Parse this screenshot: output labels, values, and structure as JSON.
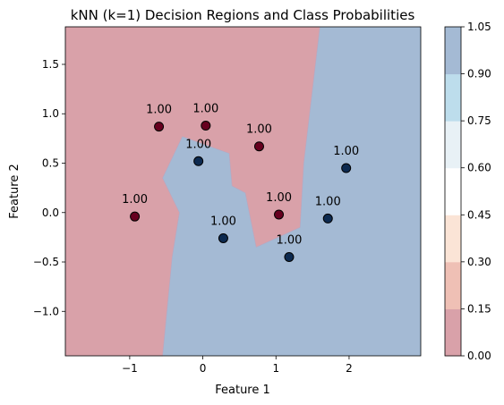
{
  "chart_data": {
    "type": "scatter",
    "title": "kNN (k=1) Decision Regions and Class Probabilities",
    "xlabel": "Feature 1",
    "ylabel": "Feature 2",
    "xlim": [
      -1.88,
      2.98
    ],
    "ylim": [
      -1.45,
      1.88
    ],
    "xticks": [
      -1,
      0,
      1,
      2
    ],
    "yticks": [
      -1.0,
      -0.5,
      0.0,
      0.5,
      1.0,
      1.5
    ],
    "xtick_labels": [
      "−1",
      "0",
      "1",
      "2"
    ],
    "ytick_labels": [
      "−1.0",
      "−0.5",
      "0.0",
      "0.5",
      "1.0",
      "1.5"
    ],
    "grid": false,
    "colors": {
      "class0_region": "#d9a1a9",
      "class1_region": "#a4bad4",
      "class0_point": "#67001f",
      "class1_point": "#0d2a50"
    },
    "regions": [
      {
        "class": 0,
        "boundary": [
          [
            -1.88,
            -1.45
          ],
          [
            -0.55,
            -1.45
          ],
          [
            -0.42,
            -0.45
          ],
          [
            -0.32,
            0.0
          ],
          [
            -0.55,
            0.35
          ],
          [
            -0.28,
            0.77
          ],
          [
            0.36,
            0.6
          ],
          [
            0.4,
            0.27
          ],
          [
            0.58,
            0.2
          ],
          [
            0.73,
            -0.35
          ],
          [
            1.33,
            -0.15
          ],
          [
            1.38,
            0.5
          ],
          [
            1.6,
            1.88
          ],
          [
            -1.88,
            1.88
          ]
        ]
      }
    ],
    "points": [
      {
        "x": -0.6,
        "y": 0.87,
        "class": 0,
        "label": "1.00"
      },
      {
        "x": 0.04,
        "y": 0.88,
        "class": 0,
        "label": "1.00"
      },
      {
        "x": 0.77,
        "y": 0.67,
        "class": 0,
        "label": "1.00"
      },
      {
        "x": -0.93,
        "y": -0.04,
        "class": 0,
        "label": "1.00"
      },
      {
        "x": 1.04,
        "y": -0.02,
        "class": 0,
        "label": "1.00"
      },
      {
        "x": -0.06,
        "y": 0.52,
        "class": 1,
        "label": "1.00"
      },
      {
        "x": 1.96,
        "y": 0.45,
        "class": 1,
        "label": "1.00"
      },
      {
        "x": 1.71,
        "y": -0.06,
        "class": 1,
        "label": "1.00"
      },
      {
        "x": 0.28,
        "y": -0.26,
        "class": 1,
        "label": "1.00"
      },
      {
        "x": 1.18,
        "y": -0.45,
        "class": 1,
        "label": "1.00"
      }
    ],
    "colorbar": {
      "ticks": [
        "0.00",
        "0.15",
        "0.30",
        "0.45",
        "0.60",
        "0.75",
        "0.90",
        "1.05"
      ],
      "bands": [
        "#d9a1a9",
        "#efc0b5",
        "#fbe4d6",
        "#ffffff",
        "#e8f1f6",
        "#bdddec",
        "#a4bad4"
      ]
    }
  }
}
